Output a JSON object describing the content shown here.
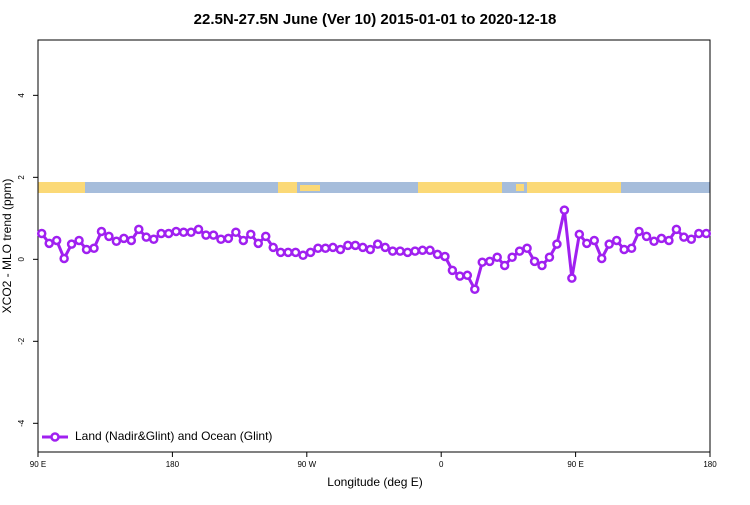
{
  "chart_data": {
    "type": "line",
    "title": "22.5N-27.5N June (Ver 10)   2015-01-01 to 2020-12-18",
    "x_label": "Longitude (deg E)",
    "y_label": "XCO2 - MLO trend (ppm)",
    "x": [
      92.5,
      97.5,
      102.5,
      107.5,
      112.5,
      117.5,
      122.5,
      127.5,
      132.5,
      137.5,
      142.5,
      147.5,
      152.5,
      157.5,
      162.5,
      167.5,
      172.5,
      177.5,
      182.5,
      187.5,
      192.5,
      197.5,
      202.5,
      207.5,
      212.5,
      217.5,
      222.5,
      227.5,
      232.5,
      237.5,
      242.5,
      247.5,
      252.5,
      257.5,
      262.5,
      267.5,
      272.5,
      277.5,
      282.5,
      287.5,
      292.5,
      297.5,
      302.5,
      307.5,
      312.5,
      317.5,
      322.5,
      327.5,
      332.5,
      337.5,
      342.5,
      347.5,
      352.5,
      357.5,
      362.5,
      367.5,
      372.5,
      377.5,
      382.5,
      387.5,
      392.5,
      397.5,
      402.5,
      407.5,
      412.5,
      417.5,
      422.5,
      427.5,
      432.5,
      437.5,
      442.5,
      447.5,
      452.5,
      457.5,
      462.5,
      467.5,
      472.5,
      477.5,
      482.5,
      487.5,
      492.5,
      497.5,
      502.5,
      507.5,
      512.5,
      517.5,
      522.5,
      527.5,
      532.5,
      537.5
    ],
    "series": [
      {
        "name": "Land (Nadir&Glint) and Ocean (Glint)",
        "color": "#a020f0",
        "values": [
          0.63,
          0.39,
          0.46,
          0.02,
          0.37,
          0.46,
          0.24,
          0.27,
          0.68,
          0.56,
          0.44,
          0.51,
          0.46,
          0.73,
          0.54,
          0.49,
          0.63,
          0.63,
          0.68,
          0.66,
          0.66,
          0.73,
          0.59,
          0.59,
          0.49,
          0.51,
          0.66,
          0.46,
          0.61,
          0.39,
          0.56,
          0.29,
          0.17,
          0.17,
          0.17,
          0.1,
          0.17,
          0.27,
          0.27,
          0.29,
          0.24,
          0.34,
          0.34,
          0.29,
          0.24,
          0.37,
          0.29,
          0.2,
          0.2,
          0.17,
          0.2,
          0.22,
          0.22,
          0.12,
          0.07,
          -0.27,
          -0.41,
          -0.39,
          -0.73,
          -0.07,
          -0.05,
          0.05,
          -0.15,
          0.05,
          0.2,
          0.27,
          -0.05,
          -0.15,
          0.05,
          0.37,
          1.2,
          -0.46,
          0.61,
          0.39,
          0.46,
          0.02,
          0.37,
          0.46,
          0.24,
          0.27,
          0.68,
          0.56,
          0.44,
          0.51,
          0.46,
          0.73,
          0.54,
          0.49,
          0.63,
          0.63
        ]
      }
    ],
    "xlim": [
      90,
      540
    ],
    "xticks": [
      {
        "value": 90,
        "label": "90 E"
      },
      180,
      {
        "value": 270,
        "label": "90 W"
      },
      {
        "value": 360,
        "label": "0"
      },
      {
        "value": 450,
        "label": "90 E"
      },
      {
        "value": 540,
        "label": "180"
      }
    ],
    "ylim": [
      -4.7,
      5.35
    ],
    "yticks": [
      -4,
      -2,
      0,
      2,
      4
    ],
    "legend": "bottom-left"
  }
}
